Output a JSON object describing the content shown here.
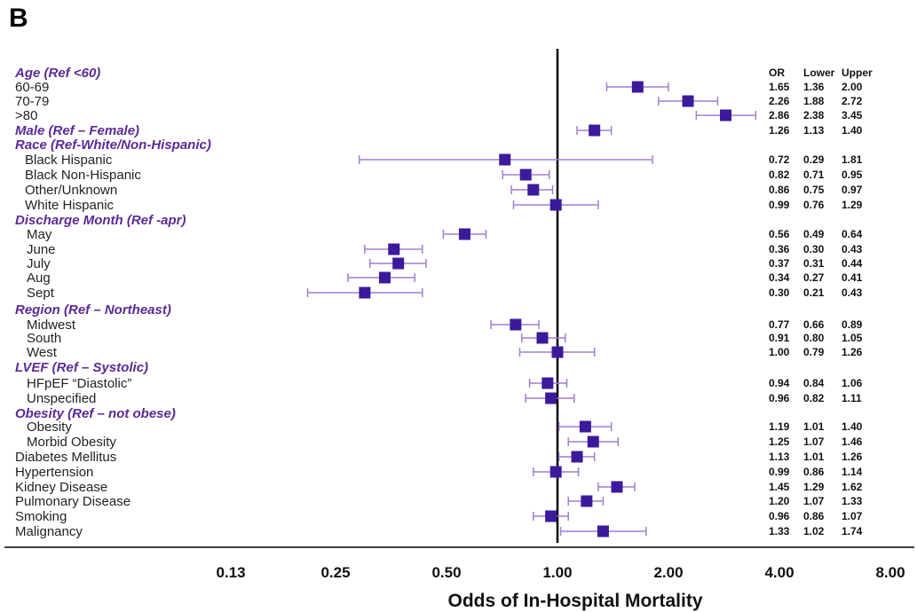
{
  "panel_label": "B",
  "chart_data": {
    "type": "forest",
    "scale": "log2",
    "reference_value": 1.0,
    "xlim": [
      0.13,
      8.0
    ],
    "xticks": [
      "0.13",
      "0.25",
      "0.50",
      "1.00",
      "2.00",
      "4.00",
      "8.00"
    ],
    "xlabel": "Odds of In-Hospital Mortality",
    "stat_headers": [
      "OR",
      "Lower",
      "Upper"
    ],
    "colors": {
      "category": "#5b2a96",
      "marker": "#3c1a9c",
      "ci": "#a07fd0",
      "reference": "#000000"
    },
    "rows": [
      {
        "label": "Age (Ref <60)",
        "kind": "category"
      },
      {
        "label": "60-69",
        "kind": "item",
        "indent": 0,
        "or": 1.65,
        "lower": 1.36,
        "upper": 2.0,
        "or_text": "1.65",
        "lower_text": "1.36",
        "upper_text": "2.00"
      },
      {
        "label": "70-79",
        "kind": "item",
        "indent": 0,
        "or": 2.26,
        "lower": 1.88,
        "upper": 2.72,
        "or_text": "2.26",
        "lower_text": "1.88",
        "upper_text": "2.72"
      },
      {
        "label": ">80",
        "kind": "item",
        "indent": 0,
        "or": 2.86,
        "lower": 2.38,
        "upper": 3.45,
        "or_text": "2.86",
        "lower_text": "2.38",
        "upper_text": "3.45"
      },
      {
        "label": "Male  (Ref – Female)",
        "kind": "category",
        "or": 1.26,
        "lower": 1.13,
        "upper": 1.4,
        "or_text": "1.26",
        "lower_text": "1.13",
        "upper_text": "1.40"
      },
      {
        "label": "Race (Ref-White/Non-Hispanic)",
        "kind": "category"
      },
      {
        "label": "Black Hispanic",
        "kind": "item",
        "indent": 1,
        "or": 0.72,
        "lower": 0.29,
        "upper": 1.81,
        "or_text": "0.72",
        "lower_text": "0.29",
        "upper_text": "1.81"
      },
      {
        "label": "Black Non-Hispanic",
        "kind": "item",
        "indent": 1,
        "or": 0.82,
        "lower": 0.71,
        "upper": 0.95,
        "or_text": "0.82",
        "lower_text": "0.71",
        "upper_text": "0.95"
      },
      {
        "label": "Other/Unknown",
        "kind": "item",
        "indent": 1,
        "or": 0.86,
        "lower": 0.75,
        "upper": 0.97,
        "or_text": "0.86",
        "lower_text": "0.75",
        "upper_text": "0.97"
      },
      {
        "label": "White Hispanic",
        "kind": "item",
        "indent": 1,
        "or": 0.99,
        "lower": 0.76,
        "upper": 1.29,
        "or_text": "0.99",
        "lower_text": "0.76",
        "upper_text": "1.29"
      },
      {
        "label": "Discharge Month (Ref -apr)",
        "kind": "category"
      },
      {
        "label": "May",
        "kind": "item",
        "indent": 2,
        "or": 0.56,
        "lower": 0.49,
        "upper": 0.64,
        "or_text": "0.56",
        "lower_text": "0.49",
        "upper_text": "0.64"
      },
      {
        "label": "June",
        "kind": "item",
        "indent": 2,
        "or": 0.36,
        "lower": 0.3,
        "upper": 0.43,
        "or_text": "0.36",
        "lower_text": "0.30",
        "upper_text": "0.43"
      },
      {
        "label": "July",
        "kind": "item",
        "indent": 2,
        "or": 0.37,
        "lower": 0.31,
        "upper": 0.44,
        "or_text": "0.37",
        "lower_text": "0.31",
        "upper_text": "0.44"
      },
      {
        "label": "Aug",
        "kind": "item",
        "indent": 2,
        "or": 0.34,
        "lower": 0.27,
        "upper": 0.41,
        "or_text": "0.34",
        "lower_text": "0.27",
        "upper_text": "0.41"
      },
      {
        "label": "Sept",
        "kind": "item",
        "indent": 2,
        "or": 0.3,
        "lower": 0.21,
        "upper": 0.43,
        "or_text": "0.30",
        "lower_text": "0.21",
        "upper_text": "0.43"
      },
      {
        "label": "Region (Ref – Northeast)",
        "kind": "category"
      },
      {
        "label": "Midwest",
        "kind": "item",
        "indent": 2,
        "or": 0.77,
        "lower": 0.66,
        "upper": 0.89,
        "or_text": "0.77",
        "lower_text": "0.66",
        "upper_text": "0.89"
      },
      {
        "label": "South",
        "kind": "item",
        "indent": 2,
        "or": 0.91,
        "lower": 0.8,
        "upper": 1.05,
        "or_text": "0.91",
        "lower_text": "0.80",
        "upper_text": "1.05"
      },
      {
        "label": "West",
        "kind": "item",
        "indent": 2,
        "or": 1.0,
        "lower": 0.79,
        "upper": 1.26,
        "or_text": "1.00",
        "lower_text": "0.79",
        "upper_text": "1.26"
      },
      {
        "label": "LVEF (Ref – Systolic)",
        "kind": "category"
      },
      {
        "label": "HFpEF “Diastolic”",
        "kind": "item",
        "indent": 2,
        "or": 0.94,
        "lower": 0.84,
        "upper": 1.06,
        "or_text": "0.94",
        "lower_text": "0.84",
        "upper_text": "1.06"
      },
      {
        "label": "Unspecified",
        "kind": "item",
        "indent": 2,
        "or": 0.96,
        "lower": 0.82,
        "upper": 1.11,
        "or_text": "0.96",
        "lower_text": "0.82",
        "upper_text": "1.11"
      },
      {
        "label": "Obesity  (Ref – not obese)",
        "kind": "category"
      },
      {
        "label": "Obesity",
        "kind": "item",
        "indent": 2,
        "or": 1.19,
        "lower": 1.01,
        "upper": 1.4,
        "or_text": "1.19",
        "lower_text": "1.01",
        "upper_text": "1.40"
      },
      {
        "label": "Morbid Obesity",
        "kind": "item",
        "indent": 2,
        "or": 1.25,
        "lower": 1.07,
        "upper": 1.46,
        "or_text": "1.25",
        "lower_text": "1.07",
        "upper_text": "1.46"
      },
      {
        "label": "Diabetes Mellitus",
        "kind": "item",
        "indent": 0,
        "or": 1.13,
        "lower": 1.01,
        "upper": 1.26,
        "or_text": "1.13",
        "lower_text": "1.01",
        "upper_text": "1.26"
      },
      {
        "label": "Hypertension",
        "kind": "item",
        "indent": 0,
        "or": 0.99,
        "lower": 0.86,
        "upper": 1.14,
        "or_text": "0.99",
        "lower_text": "0.86",
        "upper_text": "1.14"
      },
      {
        "label": "Kidney Disease",
        "kind": "item",
        "indent": 0,
        "or": 1.45,
        "lower": 1.29,
        "upper": 1.62,
        "or_text": "1.45",
        "lower_text": "1.29",
        "upper_text": "1.62"
      },
      {
        "label": "Pulmonary Disease",
        "kind": "item",
        "indent": 0,
        "or": 1.2,
        "lower": 1.07,
        "upper": 1.33,
        "or_text": "1.20",
        "lower_text": "1.07",
        "upper_text": "1.33"
      },
      {
        "label": "Smoking",
        "kind": "item",
        "indent": 0,
        "or": 0.96,
        "lower": 0.86,
        "upper": 1.07,
        "or_text": "0.96",
        "lower_text": "0.86",
        "upper_text": "1.07"
      },
      {
        "label": "Malignancy",
        "kind": "item",
        "indent": 0,
        "or": 1.33,
        "lower": 1.02,
        "upper": 1.74,
        "or_text": "1.33",
        "lower_text": "1.02",
        "upper_text": "1.74"
      }
    ]
  }
}
